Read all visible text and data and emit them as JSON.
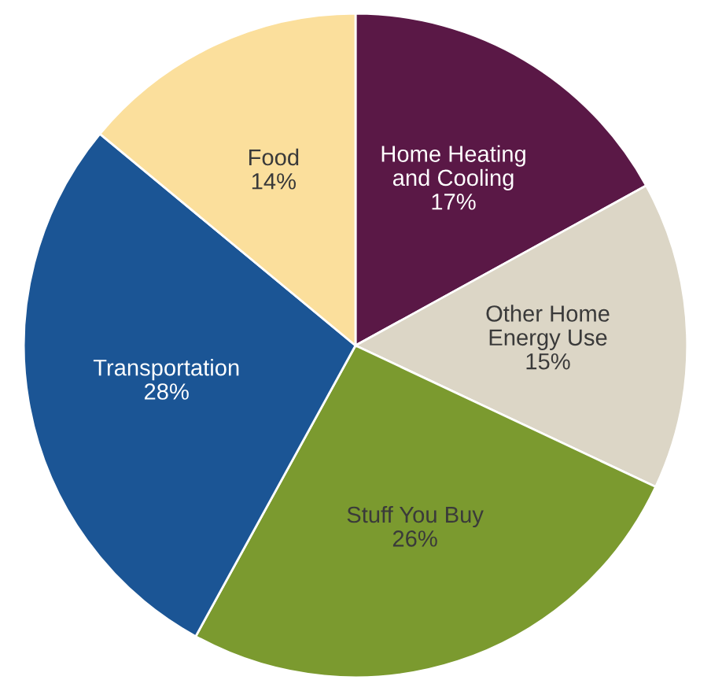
{
  "chart_data": {
    "type": "pie",
    "categories": [
      "Home Heating\nand Cooling",
      "Other Home\nEnergy Use",
      "Stuff You Buy",
      "Transportation",
      "Food"
    ],
    "values": [
      17,
      15,
      26,
      28,
      14
    ],
    "colors": [
      "#5a1846",
      "#dcd6c6",
      "#7b9a2f",
      "#1b5595",
      "#fbdf9c"
    ],
    "value_labels": [
      "17%",
      "15%",
      "26%",
      "28%",
      "14%"
    ]
  }
}
